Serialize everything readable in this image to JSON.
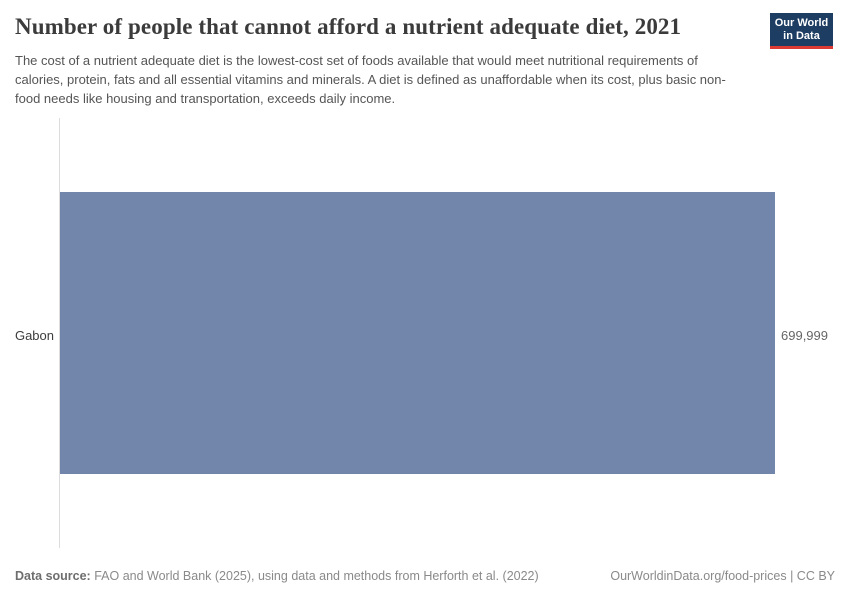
{
  "chart_data": {
    "type": "bar",
    "orientation": "horizontal",
    "title": "Number of people that cannot afford a nutrient adequate diet, 2021",
    "subtitle": "The cost of a nutrient adequate diet is the lowest-cost set of foods available that would meet nutritional requirements of calories, protein, fats and all essential vitamins and minerals. A diet is defined as unaffordable when its cost, plus basic non-food needs like housing and transportation, exceeds daily income.",
    "categories": [
      "Gabon"
    ],
    "values": [
      699999
    ],
    "value_labels": [
      "699,999"
    ],
    "xlim": [
      0,
      699999
    ],
    "grid": false,
    "legend": false,
    "bar_color": "#7286ab",
    "axis_color": "#dcdcdc"
  },
  "logo": {
    "line1": "Our World",
    "line2": "in Data",
    "bg_color": "#1d3d63",
    "accent_color": "#dc3a32"
  },
  "footer": {
    "source_label": "Data source:",
    "source_text": "FAO and World Bank (2025), using data and methods from Herforth et al. (2022)",
    "url": "OurWorldinData.org/food-prices",
    "separator": "|",
    "license": "CC BY"
  }
}
